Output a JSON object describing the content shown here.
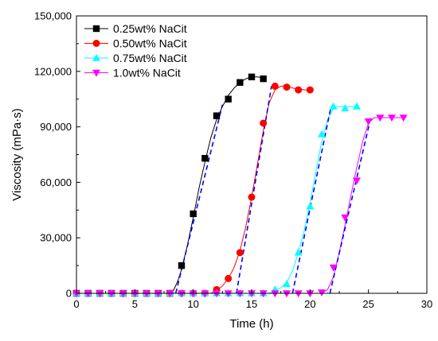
{
  "chart_data": {
    "type": "scatter",
    "xlabel": "Time (h)",
    "ylabel": "Viscosity (mPa·s)",
    "xlim": [
      0,
      30
    ],
    "ylim": [
      0,
      150000
    ],
    "x_ticks": [
      0,
      5,
      10,
      15,
      20,
      25,
      30
    ],
    "y_ticks": [
      0,
      30000,
      60000,
      90000,
      120000,
      150000
    ],
    "x_tick_labels": [
      "0",
      "5",
      "10",
      "15",
      "20",
      "25",
      "30"
    ],
    "y_tick_labels": [
      "0",
      "30,000",
      "60,000",
      "90,000",
      "120,000",
      "150,000"
    ],
    "grid": false,
    "legend_position": "top-left",
    "series": [
      {
        "name": "0.25wt% NaCit",
        "color": "#000000",
        "marker": "square",
        "points": [
          [
            0,
            0
          ],
          [
            1,
            0
          ],
          [
            2,
            0
          ],
          [
            3,
            0
          ],
          [
            4,
            0
          ],
          [
            5,
            0
          ],
          [
            6,
            0
          ],
          [
            7,
            0
          ],
          [
            8,
            0
          ],
          [
            9,
            15000
          ],
          [
            10,
            43000
          ],
          [
            11,
            73000
          ],
          [
            12,
            96000
          ],
          [
            13,
            105000
          ],
          [
            14,
            114000
          ],
          [
            15,
            117000
          ],
          [
            16,
            116000
          ]
        ],
        "fit": [
          [
            8.0,
            0
          ],
          [
            8.3,
            1500
          ],
          [
            8.7,
            7000
          ],
          [
            9.0,
            13000
          ],
          [
            9.5,
            26000
          ],
          [
            10.0,
            41000
          ],
          [
            10.5,
            57000
          ],
          [
            11.0,
            71000
          ],
          [
            11.5,
            84000
          ],
          [
            12.0,
            94000
          ],
          [
            12.5,
            101000
          ],
          [
            13.0,
            107000
          ],
          [
            13.5,
            111000
          ],
          [
            14.0,
            114000
          ],
          [
            14.5,
            116000
          ],
          [
            15.0,
            117000
          ],
          [
            15.5,
            117000
          ],
          [
            16.0,
            116500
          ]
        ],
        "linear_fit": [
          [
            8.5,
            0
          ],
          [
            12.5,
            102000
          ]
        ]
      },
      {
        "name": "0.50wt% NaCit",
        "color": "#ff0000",
        "marker": "circle",
        "points": [
          [
            0,
            0
          ],
          [
            1,
            0
          ],
          [
            2,
            0
          ],
          [
            3,
            0
          ],
          [
            4,
            0
          ],
          [
            5,
            0
          ],
          [
            6,
            0
          ],
          [
            7,
            0
          ],
          [
            8,
            0
          ],
          [
            9,
            0
          ],
          [
            10,
            0
          ],
          [
            11,
            0
          ],
          [
            12,
            2000
          ],
          [
            13,
            8000
          ],
          [
            14,
            22000
          ],
          [
            15,
            52000
          ],
          [
            16,
            92000
          ],
          [
            17,
            112000
          ],
          [
            18,
            111500
          ],
          [
            19,
            110000
          ],
          [
            20,
            110000
          ]
        ],
        "fit": [
          [
            11.5,
            0
          ],
          [
            12.0,
            1500
          ],
          [
            12.5,
            4000
          ],
          [
            13.0,
            8000
          ],
          [
            13.5,
            14000
          ],
          [
            14.0,
            23000
          ],
          [
            14.5,
            36000
          ],
          [
            15.0,
            52000
          ],
          [
            15.5,
            70000
          ],
          [
            16.0,
            88000
          ],
          [
            16.5,
            103000
          ],
          [
            17.0,
            110000
          ],
          [
            17.5,
            112000
          ],
          [
            18.0,
            112000
          ],
          [
            18.5,
            111000
          ],
          [
            19.0,
            110500
          ],
          [
            19.5,
            110000
          ],
          [
            20.0,
            110000
          ]
        ],
        "linear_fit": [
          [
            13.7,
            0
          ],
          [
            16.7,
            112000
          ]
        ]
      },
      {
        "name": "0.75wt% NaCit",
        "color": "#00ffff",
        "marker": "triangle-up",
        "points": [
          [
            0,
            0
          ],
          [
            1,
            0
          ],
          [
            2,
            0
          ],
          [
            3,
            0
          ],
          [
            4,
            0
          ],
          [
            5,
            0
          ],
          [
            6,
            0
          ],
          [
            7,
            0
          ],
          [
            8,
            0
          ],
          [
            9,
            0
          ],
          [
            10,
            0
          ],
          [
            11,
            0
          ],
          [
            12,
            0
          ],
          [
            13,
            0
          ],
          [
            14,
            0
          ],
          [
            15,
            0
          ],
          [
            16,
            0
          ],
          [
            17,
            2000
          ],
          [
            18,
            5000
          ],
          [
            19,
            22000
          ],
          [
            20,
            47000
          ],
          [
            21,
            86000
          ],
          [
            22,
            101000
          ],
          [
            23,
            100000
          ],
          [
            24,
            101000
          ]
        ],
        "fit": [
          [
            16.5,
            0
          ],
          [
            17.0,
            1500
          ],
          [
            17.5,
            3000
          ],
          [
            18.0,
            6000
          ],
          [
            18.5,
            12000
          ],
          [
            19.0,
            22000
          ],
          [
            19.5,
            34000
          ],
          [
            20.0,
            49000
          ],
          [
            20.5,
            66000
          ],
          [
            21.0,
            82000
          ],
          [
            21.5,
            94000
          ],
          [
            22.0,
            100000
          ],
          [
            22.5,
            101000
          ],
          [
            23.0,
            101000
          ],
          [
            24.0,
            101000
          ]
        ],
        "linear_fit": [
          [
            18.5,
            0
          ],
          [
            21.8,
            101000
          ]
        ]
      },
      {
        "name": "1.0wt% NaCit",
        "color": "#ff00ff",
        "marker": "triangle-down",
        "points": [
          [
            0,
            0
          ],
          [
            1,
            0
          ],
          [
            2,
            0
          ],
          [
            3,
            0
          ],
          [
            4,
            0
          ],
          [
            5,
            0
          ],
          [
            6,
            0
          ],
          [
            7,
            0
          ],
          [
            8,
            0
          ],
          [
            9,
            0
          ],
          [
            10,
            0
          ],
          [
            11,
            0
          ],
          [
            12,
            0
          ],
          [
            13,
            0
          ],
          [
            14,
            0
          ],
          [
            15,
            0
          ],
          [
            16,
            0
          ],
          [
            17,
            0
          ],
          [
            18,
            0
          ],
          [
            19,
            0
          ],
          [
            20,
            0
          ],
          [
            21,
            500
          ],
          [
            22,
            14000
          ],
          [
            23,
            41000
          ],
          [
            24,
            61000
          ],
          [
            25,
            93000
          ],
          [
            26,
            95000
          ],
          [
            27,
            95000
          ],
          [
            28,
            95000
          ]
        ],
        "fit": [
          [
            21.0,
            0
          ],
          [
            21.5,
            2000
          ],
          [
            22.0,
            9000
          ],
          [
            22.5,
            22000
          ],
          [
            23.0,
            37000
          ],
          [
            23.5,
            53000
          ],
          [
            24.0,
            68000
          ],
          [
            24.5,
            82000
          ],
          [
            25.0,
            92000
          ],
          [
            25.5,
            95000
          ],
          [
            26.0,
            95000
          ],
          [
            28.0,
            95000
          ]
        ],
        "linear_fit": [
          [
            21.7,
            0
          ],
          [
            25.2,
            95000
          ]
        ]
      }
    ]
  }
}
